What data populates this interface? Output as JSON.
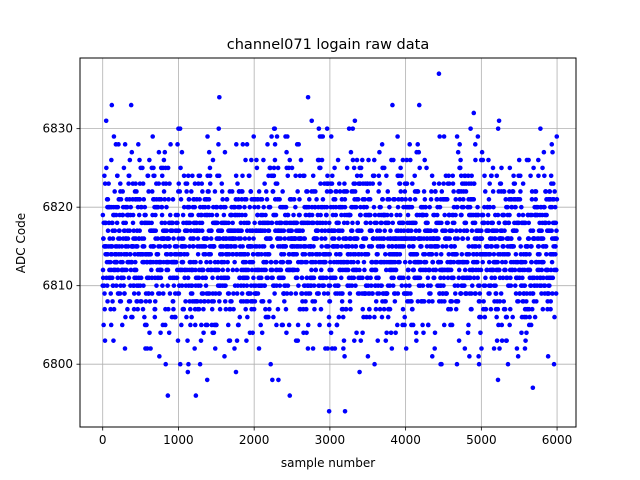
{
  "chart_data": {
    "type": "scatter",
    "title": "channel071 logain raw data",
    "xlabel": "sample number",
    "ylabel": "ADC Code",
    "xlim": [
      -300,
      6250
    ],
    "ylim": [
      6792,
      6839
    ],
    "xticks": [
      0,
      1000,
      2000,
      3000,
      4000,
      5000,
      6000
    ],
    "yticks": [
      6800,
      6810,
      6820,
      6830
    ],
    "grid": true,
    "marker_color": "#0000ff",
    "series": [
      {
        "n_samples": 6000,
        "x_start": 0,
        "x_step": 1,
        "median": 6815,
        "typical_range": [
          6803,
          6827
        ],
        "min": 6794,
        "max": 6837,
        "notable_points": [
          {
            "x": 120,
            "y": 6833
          },
          {
            "x": 1540,
            "y": 6834
          },
          {
            "x": 4440,
            "y": 6837
          },
          {
            "x": 4180,
            "y": 6833
          },
          {
            "x": 4900,
            "y": 6832
          },
          {
            "x": 3330,
            "y": 6831
          },
          {
            "x": 2760,
            "y": 6831
          },
          {
            "x": 2990,
            "y": 6794
          },
          {
            "x": 3200,
            "y": 6794
          },
          {
            "x": 860,
            "y": 6796
          },
          {
            "x": 1230,
            "y": 6796
          },
          {
            "x": 2470,
            "y": 6796
          },
          {
            "x": 5220,
            "y": 6798
          },
          {
            "x": 1380,
            "y": 6798
          }
        ]
      }
    ]
  }
}
